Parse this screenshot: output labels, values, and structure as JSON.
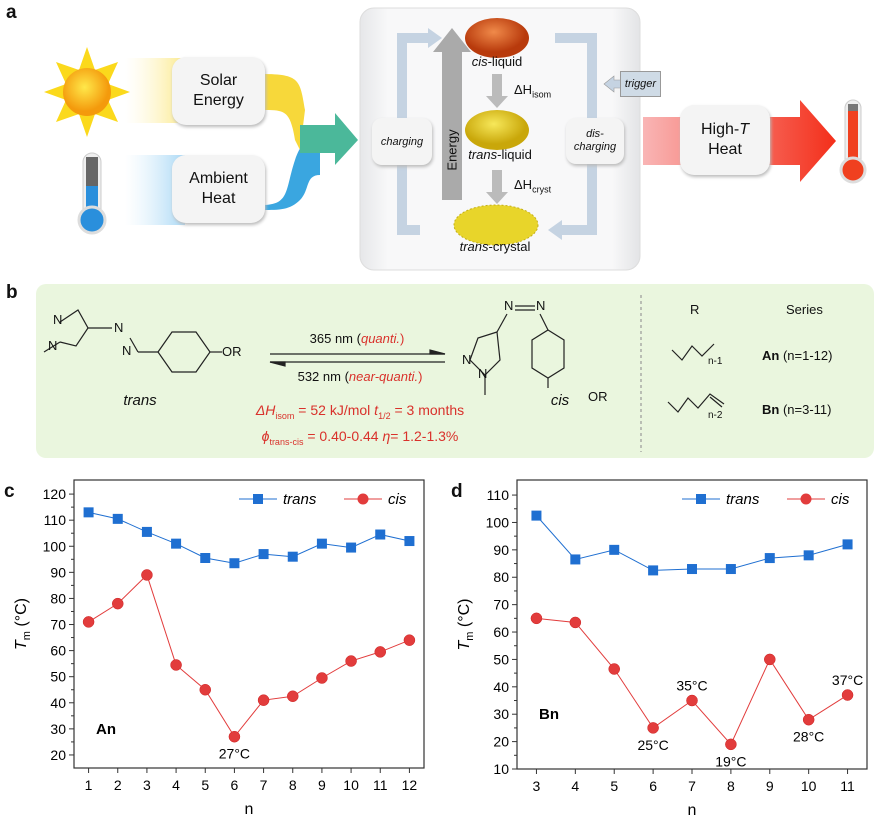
{
  "panel_labels": {
    "a": "a",
    "b": "b",
    "c": "c",
    "d": "d"
  },
  "panel_a": {
    "solar": [
      "Solar",
      "Energy"
    ],
    "ambient": [
      "Ambient",
      "Heat"
    ],
    "charging": "charging",
    "discharging": [
      "dis-",
      "charging"
    ],
    "trigger": "trigger",
    "energy": "Energy",
    "cis_liquid": {
      "prefix": "cis",
      "suffix": "-liquid"
    },
    "trans_liquid": {
      "prefix": "trans",
      "suffix": "-liquid"
    },
    "trans_crystal": {
      "prefix": "trans",
      "suffix": "-crystal"
    },
    "dh_isom": {
      "sym": "ΔH",
      "sub": "isom"
    },
    "dh_cryst": {
      "sym": "ΔH",
      "sub": "cryst"
    },
    "high_t": {
      "line1": "High-",
      "t": "T",
      "line2": "Heat"
    },
    "colors": {
      "solar": "#f7d83a",
      "ambient": "#3aa6e0",
      "heat": "#f03a25",
      "merge": "#4bb89a"
    }
  },
  "panel_b": {
    "trans_label": "trans",
    "cis_label": "cis",
    "atoms": {
      "n": "N",
      "or": "OR"
    },
    "forward": {
      "nm": "365 nm (",
      "note": "quanti.",
      "close": ")"
    },
    "backward": {
      "nm": "532 nm (",
      "note": "near-quanti.",
      "close": ")"
    },
    "props1": {
      "dh": "ΔH",
      "dh_sub": "isom",
      "dh_val": " = 52 kJ/mol  ",
      "t": "t",
      "t_sub": "1/2",
      "t_val": " = 3 months"
    },
    "props2": {
      "phi": "ϕ",
      "phi_sub": "trans-cis",
      "phi_val": " = 0.40-0.44  ",
      "eta": "η",
      "eta_val": "= 1.2-1.3%"
    },
    "r_header": "R",
    "series_header": "Series",
    "chain_a_sub": "n-1",
    "chain_b_sub": "n-2",
    "series_a": {
      "name": "An",
      "range": " (n=1-12)"
    },
    "series_b": {
      "name": "Bn",
      "range": " (n=3-11)"
    },
    "accent": "#d9312b"
  },
  "chart_data": [
    {
      "type": "line",
      "panel": "c",
      "xlabel": "n",
      "ylabel": "T",
      "ylabel_sub": "m",
      "ylabel_unit": " (°C)",
      "series_label": "An",
      "x": [
        1,
        2,
        3,
        4,
        5,
        6,
        7,
        8,
        9,
        10,
        11,
        12
      ],
      "xlim": [
        0.5,
        12.5
      ],
      "ylim": [
        15,
        125.4
      ],
      "yticks": [
        20,
        30,
        40,
        50,
        60,
        70,
        80,
        90,
        100,
        110,
        120
      ],
      "series": [
        {
          "name": "trans",
          "marker": "square",
          "color": "#1f6fd1",
          "values": [
            113,
            110.5,
            105.5,
            101,
            95.5,
            93.5,
            97,
            96,
            101,
            99.5,
            104.5,
            102
          ]
        },
        {
          "name": "cis",
          "marker": "circle",
          "color": "#e23c3c",
          "values": [
            71,
            78,
            89,
            54.5,
            45,
            27,
            41,
            42.5,
            49.5,
            56,
            59.5,
            64
          ]
        }
      ],
      "annotations": [
        {
          "series": 1,
          "index": 5,
          "text": "27°C",
          "pos": "below"
        }
      ],
      "legend": "top-right"
    },
    {
      "type": "line",
      "panel": "d",
      "xlabel": "n",
      "ylabel": "T",
      "ylabel_sub": "m",
      "ylabel_unit": " (°C)",
      "series_label": "Bn",
      "x": [
        3,
        4,
        5,
        6,
        7,
        8,
        9,
        10,
        11
      ],
      "xlim": [
        2.5,
        11.5
      ],
      "ylim": [
        10,
        115.5
      ],
      "yticks": [
        10,
        20,
        30,
        40,
        50,
        60,
        70,
        80,
        90,
        100,
        110
      ],
      "series": [
        {
          "name": "trans",
          "marker": "square",
          "color": "#1f6fd1",
          "values": [
            102.5,
            86.5,
            90,
            82.5,
            83,
            83,
            87,
            88,
            92
          ]
        },
        {
          "name": "cis",
          "marker": "circle",
          "color": "#e23c3c",
          "values": [
            65,
            63.5,
            46.5,
            25,
            35,
            19,
            50,
            28,
            37
          ]
        }
      ],
      "annotations": [
        {
          "series": 1,
          "index": 3,
          "text": "25°C",
          "pos": "below"
        },
        {
          "series": 1,
          "index": 4,
          "text": "35°C",
          "pos": "above"
        },
        {
          "series": 1,
          "index": 5,
          "text": "19°C",
          "pos": "below"
        },
        {
          "series": 1,
          "index": 7,
          "text": "28°C",
          "pos": "below"
        },
        {
          "series": 1,
          "index": 8,
          "text": "37°C",
          "pos": "above"
        }
      ],
      "legend": "top-right"
    }
  ]
}
